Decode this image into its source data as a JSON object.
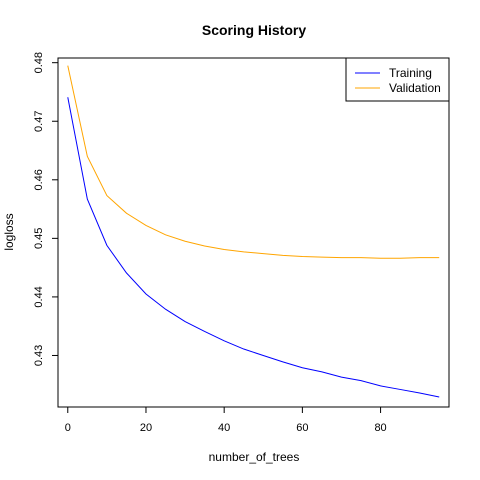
{
  "chart_data": {
    "type": "line",
    "title": "Scoring History",
    "xlabel": "number_of_trees",
    "ylabel": "logloss",
    "xlim": [
      -2.5,
      97.5
    ],
    "ylim": [
      0.4212,
      0.4808
    ],
    "x_ticks": [
      0,
      20,
      40,
      60,
      80
    ],
    "y_ticks": [
      0.43,
      0.44,
      0.45,
      0.46,
      0.47,
      0.48
    ],
    "x_tick_labels": [
      "0",
      "20",
      "40",
      "60",
      "80"
    ],
    "y_tick_labels": [
      "0.43",
      "0.44",
      "0.45",
      "0.46",
      "0.47",
      "0.48"
    ],
    "grid": false,
    "legend_position": "top-right",
    "x": [
      0,
      5,
      10,
      15,
      20,
      25,
      30,
      35,
      40,
      45,
      50,
      55,
      60,
      65,
      70,
      75,
      80,
      85,
      90,
      95
    ],
    "series": [
      {
        "name": "Training",
        "color": "#0000ff",
        "values": [
          0.4741,
          0.4567,
          0.4488,
          0.4441,
          0.4405,
          0.4379,
          0.4358,
          0.4341,
          0.4325,
          0.4311,
          0.43,
          0.4289,
          0.4279,
          0.4272,
          0.4263,
          0.4257,
          0.4248,
          0.4242,
          0.4236,
          0.4229
        ]
      },
      {
        "name": "Validation",
        "color": "#ffa500",
        "values": [
          0.4795,
          0.464,
          0.4573,
          0.4543,
          0.4522,
          0.4506,
          0.4495,
          0.4487,
          0.4481,
          0.4477,
          0.4474,
          0.4471,
          0.4469,
          0.4468,
          0.4467,
          0.4467,
          0.4466,
          0.4466,
          0.4467,
          0.4467
        ]
      }
    ]
  }
}
